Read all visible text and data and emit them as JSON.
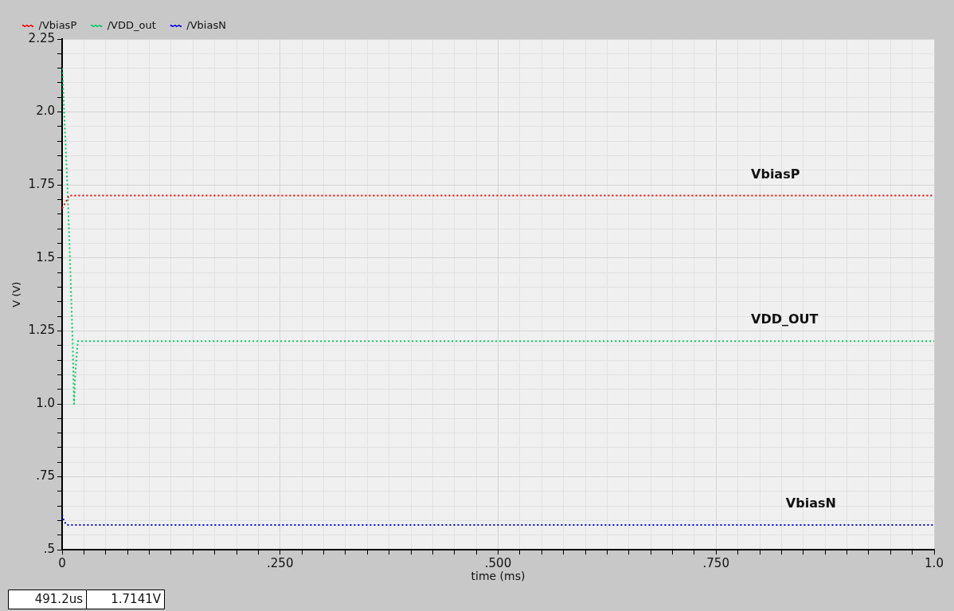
{
  "chart_data": {
    "type": "line",
    "xlabel": "time (ms)",
    "ylabel": "V (V)",
    "xlim": [
      0,
      1.0
    ],
    "ylim": [
      0.5,
      2.25
    ],
    "xticks": [
      {
        "value": 0,
        "label": "0"
      },
      {
        "value": 0.025,
        "label": null
      },
      {
        "value": 0.05,
        "label": null
      },
      {
        "value": 0.075,
        "label": null
      },
      {
        "value": 0.1,
        "label": null
      },
      {
        "value": 0.125,
        "label": null
      },
      {
        "value": 0.15,
        "label": null
      },
      {
        "value": 0.175,
        "label": null
      },
      {
        "value": 0.2,
        "label": null
      },
      {
        "value": 0.225,
        "label": null
      },
      {
        "value": 0.25,
        "label": ".250"
      },
      {
        "value": 0.275,
        "label": null
      },
      {
        "value": 0.3,
        "label": null
      },
      {
        "value": 0.325,
        "label": null
      },
      {
        "value": 0.35,
        "label": null
      },
      {
        "value": 0.375,
        "label": null
      },
      {
        "value": 0.4,
        "label": null
      },
      {
        "value": 0.425,
        "label": null
      },
      {
        "value": 0.45,
        "label": null
      },
      {
        "value": 0.475,
        "label": null
      },
      {
        "value": 0.5,
        "label": ".500"
      },
      {
        "value": 0.525,
        "label": null
      },
      {
        "value": 0.55,
        "label": null
      },
      {
        "value": 0.575,
        "label": null
      },
      {
        "value": 0.6,
        "label": null
      },
      {
        "value": 0.625,
        "label": null
      },
      {
        "value": 0.65,
        "label": null
      },
      {
        "value": 0.675,
        "label": null
      },
      {
        "value": 0.7,
        "label": null
      },
      {
        "value": 0.725,
        "label": null
      },
      {
        "value": 0.75,
        "label": ".750"
      },
      {
        "value": 0.775,
        "label": null
      },
      {
        "value": 0.8,
        "label": null
      },
      {
        "value": 0.825,
        "label": null
      },
      {
        "value": 0.85,
        "label": null
      },
      {
        "value": 0.875,
        "label": null
      },
      {
        "value": 0.9,
        "label": null
      },
      {
        "value": 0.925,
        "label": null
      },
      {
        "value": 0.95,
        "label": null
      },
      {
        "value": 0.975,
        "label": null
      },
      {
        "value": 1.0,
        "label": "1.0"
      }
    ],
    "yticks": [
      {
        "value": 0.5,
        "label": ".5"
      },
      {
        "value": 0.55,
        "label": null
      },
      {
        "value": 0.6,
        "label": null
      },
      {
        "value": 0.65,
        "label": null
      },
      {
        "value": 0.7,
        "label": null
      },
      {
        "value": 0.75,
        "label": ".75"
      },
      {
        "value": 0.8,
        "label": null
      },
      {
        "value": 0.85,
        "label": null
      },
      {
        "value": 0.9,
        "label": null
      },
      {
        "value": 0.95,
        "label": null
      },
      {
        "value": 1.0,
        "label": "1.0"
      },
      {
        "value": 1.05,
        "label": null
      },
      {
        "value": 1.1,
        "label": null
      },
      {
        "value": 1.15,
        "label": null
      },
      {
        "value": 1.2,
        "label": null
      },
      {
        "value": 1.25,
        "label": "1.25"
      },
      {
        "value": 1.3,
        "label": null
      },
      {
        "value": 1.35,
        "label": null
      },
      {
        "value": 1.4,
        "label": null
      },
      {
        "value": 1.45,
        "label": null
      },
      {
        "value": 1.5,
        "label": "1.5"
      },
      {
        "value": 1.55,
        "label": null
      },
      {
        "value": 1.6,
        "label": null
      },
      {
        "value": 1.65,
        "label": null
      },
      {
        "value": 1.7,
        "label": null
      },
      {
        "value": 1.75,
        "label": "1.75"
      },
      {
        "value": 1.8,
        "label": null
      },
      {
        "value": 1.85,
        "label": null
      },
      {
        "value": 1.9,
        "label": null
      },
      {
        "value": 1.95,
        "label": null
      },
      {
        "value": 2.0,
        "label": "2.0"
      },
      {
        "value": 2.05,
        "label": null
      },
      {
        "value": 2.1,
        "label": null
      },
      {
        "value": 2.15,
        "label": null
      },
      {
        "value": 2.2,
        "label": null
      },
      {
        "value": 2.25,
        "label": "2.25"
      }
    ],
    "series": [
      {
        "name": "/VbiasP",
        "color": "#ff0000",
        "x": [
          0,
          0.004,
          0.008,
          1.0
        ],
        "values": [
          1.67,
          1.69,
          1.714,
          1.714
        ]
      },
      {
        "name": "/VDD_out",
        "color": "#00cc66",
        "x": [
          0,
          0.001,
          0.003,
          0.006,
          0.009,
          0.012,
          0.0137,
          0.015,
          0.018,
          1.0
        ],
        "values": [
          2.15,
          2.1,
          1.95,
          1.75,
          1.5,
          1.22,
          1.0,
          1.1,
          1.215,
          1.215
        ]
      },
      {
        "name": "/VbiasN",
        "color": "#0000ff",
        "x": [
          0,
          0.002,
          0.005,
          1.0
        ],
        "values": [
          0.62,
          0.6,
          0.585,
          0.585
        ]
      }
    ],
    "annotations": [
      "VbiasP",
      "VDD_OUT",
      "VbiasN",
      "491.2us",
      "1.7141V"
    ],
    "grid": true,
    "legend": "top left",
    "marker": "none",
    "line_style": "dotted"
  }
}
